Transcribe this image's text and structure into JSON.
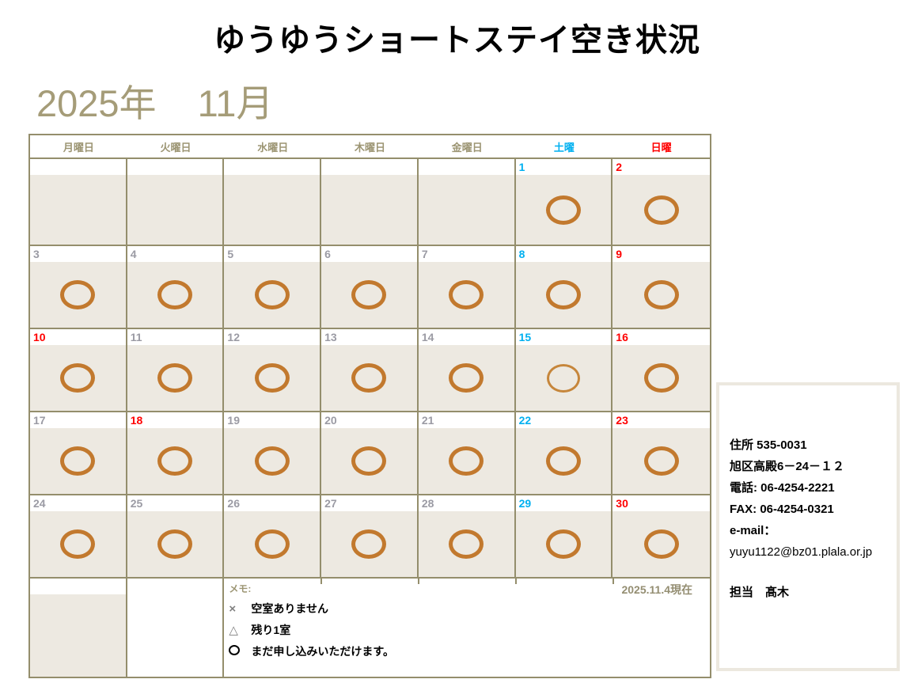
{
  "title": "ゆうゆうショートステイ空き状況",
  "period": {
    "year_label": "2025年",
    "month_label": "11月"
  },
  "colors": {
    "grid_border": "#948E6C",
    "cell_fill": "#EDE9E1",
    "header_text": "#9C9573",
    "weekday_number": "#9B9BA4",
    "saturday": "#00B0F0",
    "sunday_holiday": "#FF0000",
    "circle": "#C2792E",
    "period_text": "#A59C78"
  },
  "calendar": {
    "weekday_headers": [
      {
        "label": "月曜日",
        "key": "mon",
        "type": "weekday"
      },
      {
        "label": "火曜日",
        "key": "tue",
        "type": "weekday"
      },
      {
        "label": "水曜日",
        "key": "wed",
        "type": "weekday"
      },
      {
        "label": "木曜日",
        "key": "thu",
        "type": "weekday"
      },
      {
        "label": "金曜日",
        "key": "fri",
        "type": "weekday"
      },
      {
        "label": "土曜",
        "key": "sat",
        "type": "sat"
      },
      {
        "label": "日曜",
        "key": "sun",
        "type": "sun"
      }
    ],
    "weeks": [
      [
        null,
        null,
        null,
        null,
        null,
        {
          "day": "1",
          "color": "sat",
          "mark": "circle"
        },
        {
          "day": "2",
          "color": "sun",
          "mark": "circle"
        }
      ],
      [
        {
          "day": "3",
          "color": "weekday",
          "mark": "circle"
        },
        {
          "day": "4",
          "color": "weekday",
          "mark": "circle"
        },
        {
          "day": "5",
          "color": "weekday",
          "mark": "circle"
        },
        {
          "day": "6",
          "color": "weekday",
          "mark": "circle"
        },
        {
          "day": "7",
          "color": "weekday",
          "mark": "circle"
        },
        {
          "day": "8",
          "color": "sat",
          "mark": "circle"
        },
        {
          "day": "9",
          "color": "sun",
          "mark": "circle"
        }
      ],
      [
        {
          "day": "10",
          "color": "sun",
          "mark": "circle"
        },
        {
          "day": "11",
          "color": "weekday",
          "mark": "circle"
        },
        {
          "day": "12",
          "color": "weekday",
          "mark": "circle"
        },
        {
          "day": "13",
          "color": "weekday",
          "mark": "circle"
        },
        {
          "day": "14",
          "color": "weekday",
          "mark": "circle"
        },
        {
          "day": "15",
          "color": "sat",
          "mark": "circle_thin"
        },
        {
          "day": "16",
          "color": "sun",
          "mark": "circle"
        }
      ],
      [
        {
          "day": "17",
          "color": "weekday",
          "mark": "circle"
        },
        {
          "day": "18",
          "color": "sun",
          "mark": "circle"
        },
        {
          "day": "19",
          "color": "weekday",
          "mark": "circle"
        },
        {
          "day": "20",
          "color": "weekday",
          "mark": "circle"
        },
        {
          "day": "21",
          "color": "weekday",
          "mark": "circle"
        },
        {
          "day": "22",
          "color": "sat",
          "mark": "circle"
        },
        {
          "day": "23",
          "color": "sun",
          "mark": "circle"
        }
      ],
      [
        {
          "day": "24",
          "color": "weekday",
          "mark": "circle"
        },
        {
          "day": "25",
          "color": "weekday",
          "mark": "circle"
        },
        {
          "day": "26",
          "color": "weekday",
          "mark": "circle"
        },
        {
          "day": "27",
          "color": "weekday",
          "mark": "circle"
        },
        {
          "day": "28",
          "color": "weekday",
          "mark": "circle"
        },
        {
          "day": "29",
          "color": "sat",
          "mark": "circle"
        },
        {
          "day": "30",
          "color": "sun",
          "mark": "circle"
        }
      ]
    ],
    "memo": {
      "label": "メモ:",
      "as_of": "2025.11.4現在",
      "legend": [
        {
          "symbol_type": "cross",
          "symbol_char": "×",
          "text": "空室ありません"
        },
        {
          "symbol_type": "triangle",
          "symbol_char": "△",
          "text": "残り1室"
        },
        {
          "symbol_type": "circle",
          "symbol_char": "○",
          "text": "まだ申し込みいただけます。"
        }
      ]
    }
  },
  "info_panel": {
    "lines": [
      {
        "text": "住所 535-0031",
        "style": "bold"
      },
      {
        "text": "旭区高殿6－24－１２",
        "style": "bold"
      },
      {
        "text": "電話: 06-4254-2221",
        "style": "bold"
      },
      {
        "text": "FAX: 06-4254-0321",
        "style": "bold"
      },
      {
        "text": "e-mail：",
        "style": "bold"
      },
      {
        "text": "yuyu1122@bz01.plala.or.jp",
        "style": "light"
      },
      {
        "text": "担当　髙木",
        "style": "bold-gap"
      }
    ]
  }
}
